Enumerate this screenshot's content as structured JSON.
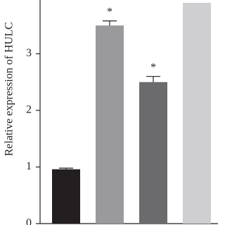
{
  "chart_data": {
    "type": "bar",
    "y_label": "Relative expression of HULC",
    "values": [
      0.96,
      3.5,
      2.5,
      3.9
    ],
    "errors": [
      0.02,
      0.08,
      0.1,
      null
    ],
    "significance": [
      null,
      "*",
      "*",
      null
    ],
    "colors": [
      "#231f20",
      "#9a9a9c",
      "#6b6b6d",
      "#cfcfd1"
    ],
    "ylim": [
      0,
      3.95
    ],
    "yticks": [
      0,
      1,
      2,
      3
    ],
    "grid": false
  }
}
